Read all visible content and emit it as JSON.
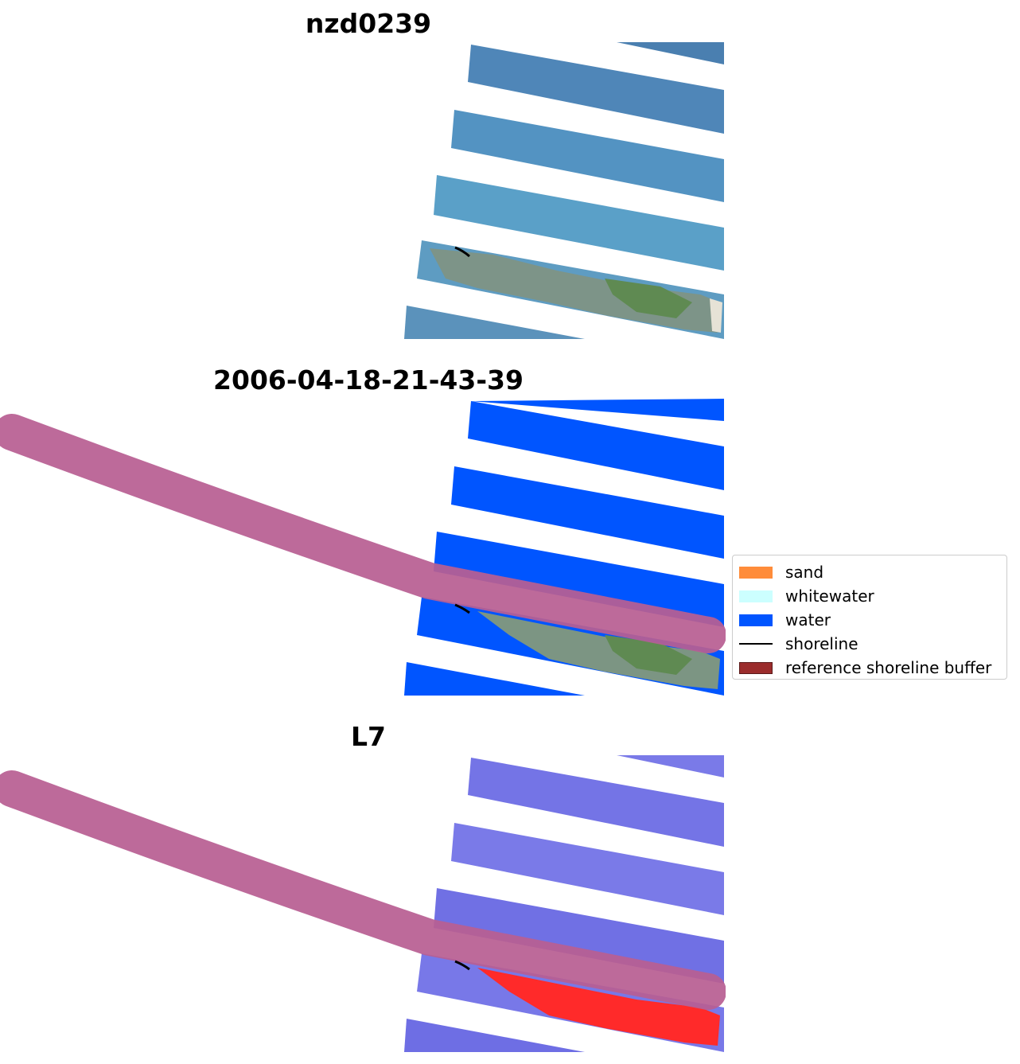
{
  "panels": [
    {
      "title": "nzd0239",
      "kind": "rgb"
    },
    {
      "title": "2006-04-18-21-43-39",
      "kind": "classified"
    },
    {
      "title": "L7",
      "kind": "mndwi"
    }
  ],
  "legend": {
    "items": [
      {
        "label": "sand",
        "type": "patch",
        "color": "#ff8c3a"
      },
      {
        "label": "whitewater",
        "type": "patch",
        "color": "#ccffff"
      },
      {
        "label": "water",
        "type": "patch",
        "color": "#0055ff"
      },
      {
        "label": "shoreline",
        "type": "line",
        "color": "#000000"
      },
      {
        "label": "reference shoreline buffer",
        "type": "patch",
        "color": "#9b2c2c"
      }
    ]
  },
  "colors": {
    "buffer_overlay": "#b85f92",
    "rgb_water": "#4f8fbf",
    "classified_water": "#0055ff",
    "mndwi_water": "#7a7ae8",
    "land_green": "#6f8a63",
    "sand_red": "#ff2a2a"
  }
}
